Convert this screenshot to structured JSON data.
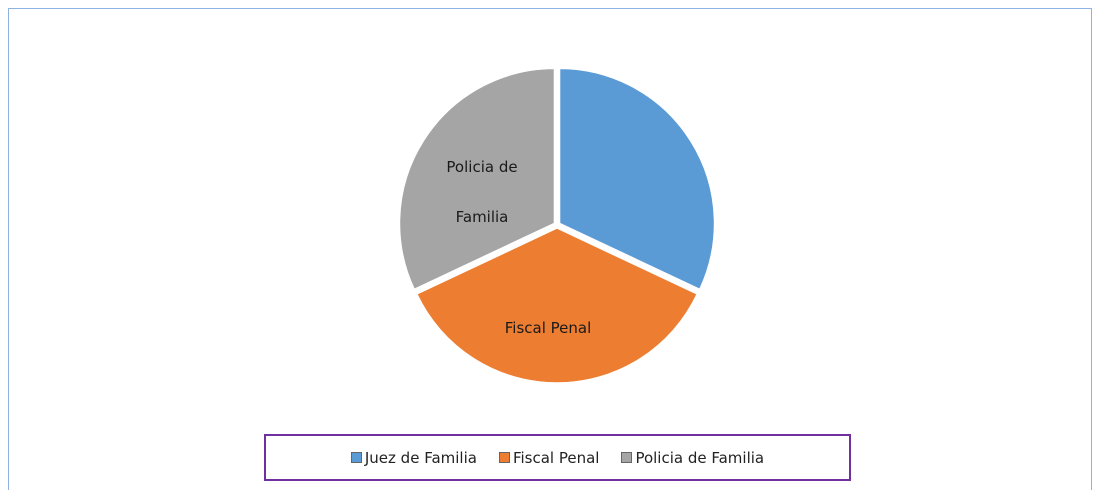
{
  "chart_data": {
    "type": "pie",
    "categories": [
      "Juez de Familia",
      "Fiscal Penal",
      "Policia de Familia"
    ],
    "values": [
      32,
      36,
      32
    ],
    "colors": [
      "#5b9bd5",
      "#ed7d31",
      "#a5a5a5"
    ],
    "legend": "bottom"
  }
}
